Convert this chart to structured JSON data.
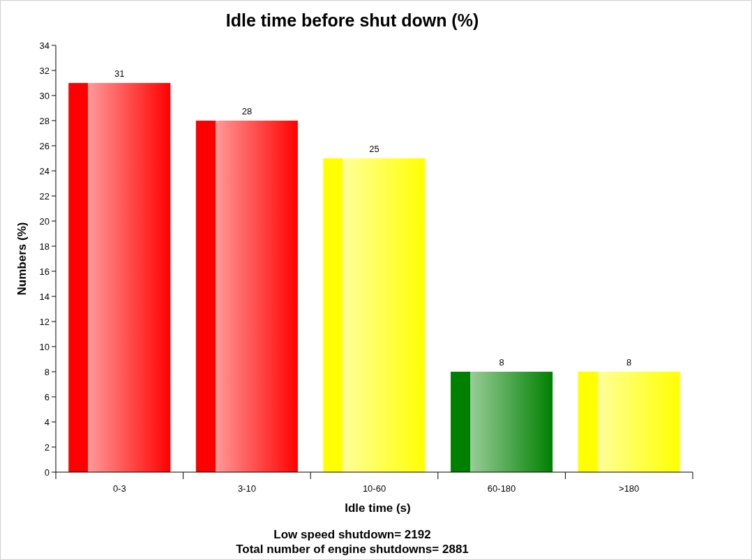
{
  "chart_data": {
    "type": "bar",
    "title": "Idle time before shut down (%)",
    "xlabel": "Idle time (s)",
    "ylabel": "Numbers (%)",
    "categories": [
      "0-3",
      "3-10",
      "10-60",
      "60-180",
      ">180"
    ],
    "values": [
      31,
      28,
      25,
      8,
      8
    ],
    "colors": [
      "#ff0000",
      "#ff0000",
      "#ffff00",
      "#008000",
      "#ffff00"
    ],
    "ylim": [
      0,
      34
    ],
    "yticks": [
      0,
      2,
      4,
      6,
      8,
      10,
      12,
      14,
      16,
      18,
      20,
      22,
      24,
      26,
      28,
      30,
      32,
      34
    ],
    "data_labels": true,
    "annotations": [
      "Low speed shutdown= 2192",
      "Total number of engine shutdowns= 2881"
    ]
  }
}
